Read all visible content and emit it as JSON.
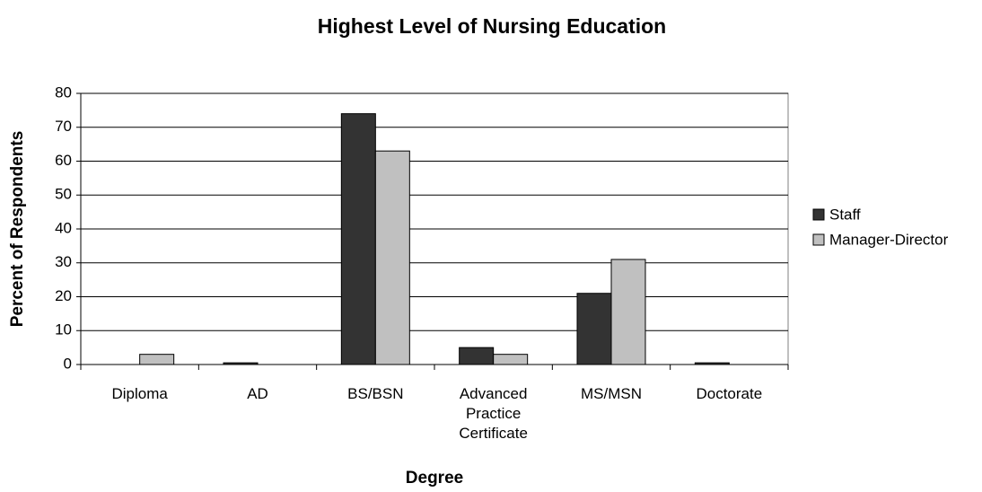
{
  "chart_data": {
    "type": "bar",
    "title": "Highest Level of Nursing Education",
    "x_label": "Degree",
    "y_label": "Percent of Respondents",
    "categories": [
      "Diploma",
      "AD",
      "BS/BSN",
      "Advanced Practice Certificate",
      "MS/MSN",
      "Doctorate"
    ],
    "series": [
      {
        "name": "Staff",
        "color": "#333333",
        "values": [
          0,
          0.5,
          74,
          5,
          21,
          0.5
        ]
      },
      {
        "name": "Manager-Director",
        "color": "#c0c0c0",
        "values": [
          3,
          0,
          63,
          3,
          31,
          0
        ]
      }
    ],
    "ylim": [
      0,
      80
    ],
    "yticks": [
      0,
      10,
      20,
      30,
      40,
      50,
      60,
      70,
      80
    ],
    "grid": true,
    "legend": "right"
  }
}
